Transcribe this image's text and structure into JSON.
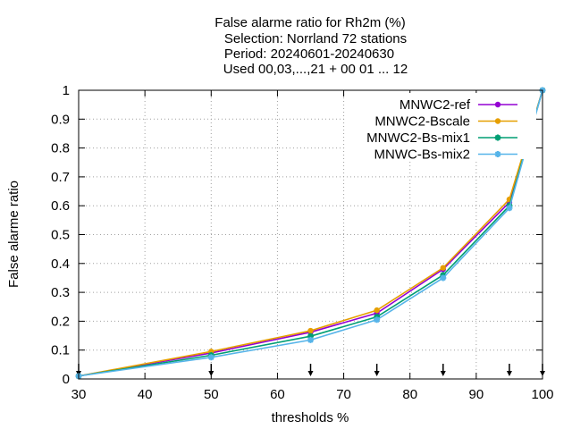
{
  "chart_data": {
    "type": "line",
    "title_lines": [
      "False alarme ratio  for Rh2m (%)",
      "Selection: Norrland     72 stations",
      "Period: 20240601-20240630",
      "Used 00,03,...,21 + 00 01 ... 12"
    ],
    "xlabel": "thresholds %",
    "ylabel": "False alarme ratio",
    "xlim": [
      30,
      100
    ],
    "ylim": [
      0,
      1
    ],
    "x_ticks": [
      "30",
      "40",
      "50",
      "60",
      "70",
      "80",
      "90",
      "100"
    ],
    "y_ticks": [
      "0",
      "0.1",
      "0.2",
      "0.3",
      "0.4",
      "0.5",
      "0.6",
      "0.7",
      "0.8",
      "0.9",
      "1"
    ],
    "grid": true,
    "legend_position": "top-right",
    "x": [
      30,
      50,
      65,
      75,
      85,
      95,
      100
    ],
    "series": [
      {
        "name": "MNWC2-ref",
        "color": "#9400d3",
        "marker": "circle",
        "values": [
          0.01,
          0.09,
          0.162,
          0.228,
          0.38,
          0.612,
          1.0
        ]
      },
      {
        "name": "MNWC2-Bscale",
        "color": "#e69f00",
        "marker": "circle",
        "values": [
          0.01,
          0.095,
          0.167,
          0.238,
          0.385,
          0.622,
          1.0
        ]
      },
      {
        "name": "MNWC2-Bs-mix1",
        "color": "#009e73",
        "marker": "cross",
        "values": [
          0.01,
          0.082,
          0.148,
          0.215,
          0.36,
          0.6,
          1.0
        ]
      },
      {
        "name": "MNWC-Bs-mix2",
        "color": "#56b4e9",
        "marker": "cross",
        "values": [
          0.01,
          0.075,
          0.135,
          0.205,
          0.35,
          0.592,
          1.0
        ]
      }
    ],
    "threshold_markers": [
      30,
      50,
      65,
      75,
      85,
      95,
      100
    ]
  }
}
